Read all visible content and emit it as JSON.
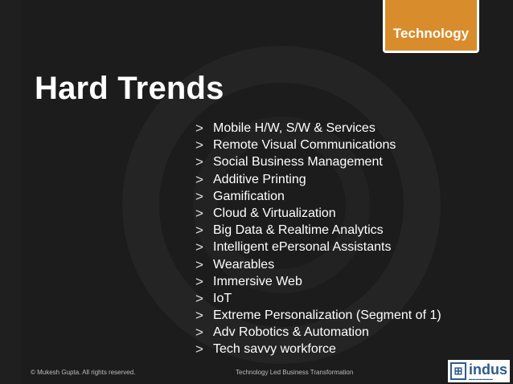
{
  "tab": {
    "label": "Technology"
  },
  "title": "Hard Trends",
  "bullet_glyph": ">",
  "items": [
    "Mobile H/W, S/W & Services",
    "Remote Visual Communications",
    "Social Business Management",
    "Additive Printing",
    "Gamification",
    "Cloud & Virtualization",
    "Big Data & Realtime Analytics",
    "Intelligent ePersonal Assistants",
    "Wearables",
    "Immersive Web",
    "IoT",
    "Extreme Personalization (Segment of 1)",
    "Adv Robotics & Automation",
    "Tech savvy workforce"
  ],
  "footer": {
    "copyright": "© Mukesh Gupta. All rights reserved.",
    "center": "Technology Led Business Transformation"
  },
  "logo": {
    "text": "indus"
  },
  "colors": {
    "background": "#1c1c1c",
    "accent": "#d98c2b",
    "logo_blue": "#2f5b8c"
  }
}
